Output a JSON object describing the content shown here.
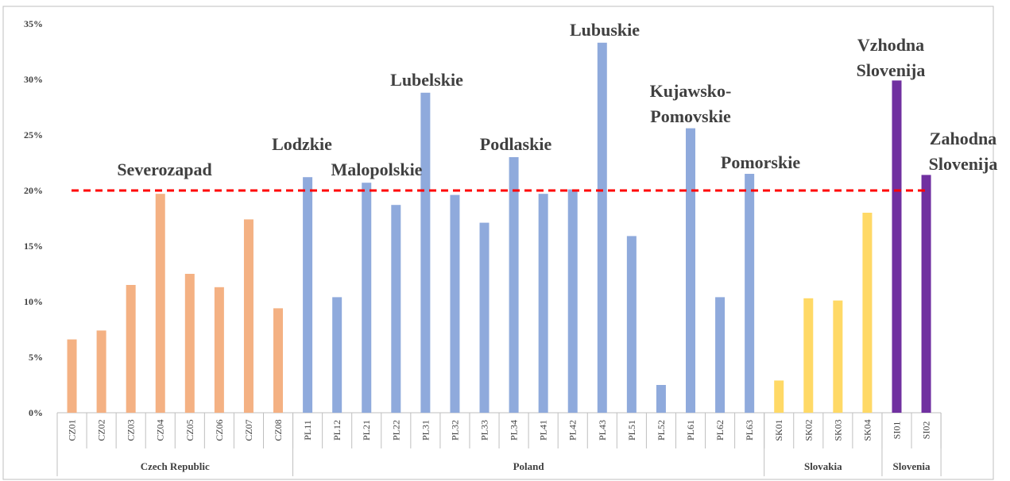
{
  "chart_data": {
    "type": "bar",
    "yticks": [
      {
        "value": 0,
        "label": "0%"
      },
      {
        "value": 5,
        "label": "5%"
      },
      {
        "value": 10,
        "label": "10%"
      },
      {
        "value": 15,
        "label": "15%"
      },
      {
        "value": 20,
        "label": "20%"
      },
      {
        "value": 25,
        "label": "25%"
      },
      {
        "value": 30,
        "label": "30%"
      },
      {
        "value": 35,
        "label": "35%"
      }
    ],
    "ylim": [
      0,
      35
    ],
    "series": [
      {
        "name": "Czech Republic",
        "color": "#f4b183",
        "categories": [
          "CZ01",
          "CZ02",
          "CZ03",
          "CZ04",
          "CZ05",
          "CZ06",
          "CZ07",
          "CZ08"
        ],
        "values": [
          6.6,
          7.4,
          11.5,
          19.7,
          12.5,
          11.3,
          17.4,
          9.4
        ]
      },
      {
        "name": "Poland",
        "color": "#8faadc",
        "categories": [
          "PL11",
          "PL12",
          "PL21",
          "PL22",
          "PL31",
          "PL32",
          "PL33",
          "PL34",
          "PL41",
          "PL42",
          "PL43",
          "PL51",
          "PL52",
          "PL61",
          "PL62",
          "PL63"
        ],
        "values": [
          21.2,
          10.4,
          20.7,
          18.7,
          28.8,
          19.6,
          17.1,
          23.0,
          19.7,
          20.1,
          33.3,
          15.9,
          2.5,
          25.6,
          10.4,
          21.5
        ]
      },
      {
        "name": "Slovakia",
        "color": "#ffd966",
        "categories": [
          "SK01",
          "SK02",
          "SK03",
          "SK04"
        ],
        "values": [
          2.9,
          10.3,
          10.1,
          18.0
        ]
      },
      {
        "name": "Slovenia",
        "color": "#7030a0",
        "categories": [
          "SI01",
          "SI02"
        ],
        "values": [
          29.9,
          21.4
        ]
      }
    ],
    "reference_line": {
      "value": 20,
      "color": "#ff0000"
    },
    "annotations": [
      {
        "lines": [
          "Severozapad"
        ]
      },
      {
        "lines": [
          "Lodzkie"
        ]
      },
      {
        "lines": [
          "Malopolskie"
        ]
      },
      {
        "lines": [
          "Lubelskie"
        ]
      },
      {
        "lines": [
          "Podlaskie"
        ]
      },
      {
        "lines": [
          "Lubuskie"
        ]
      },
      {
        "lines": [
          "Kujawsko-",
          "Pomovskie"
        ]
      },
      {
        "lines": [
          "Pomorskie"
        ]
      },
      {
        "lines": [
          "Vzhodna",
          "Slovenija"
        ]
      },
      {
        "lines": [
          "Zahodna",
          "Slovenija"
        ]
      }
    ]
  }
}
